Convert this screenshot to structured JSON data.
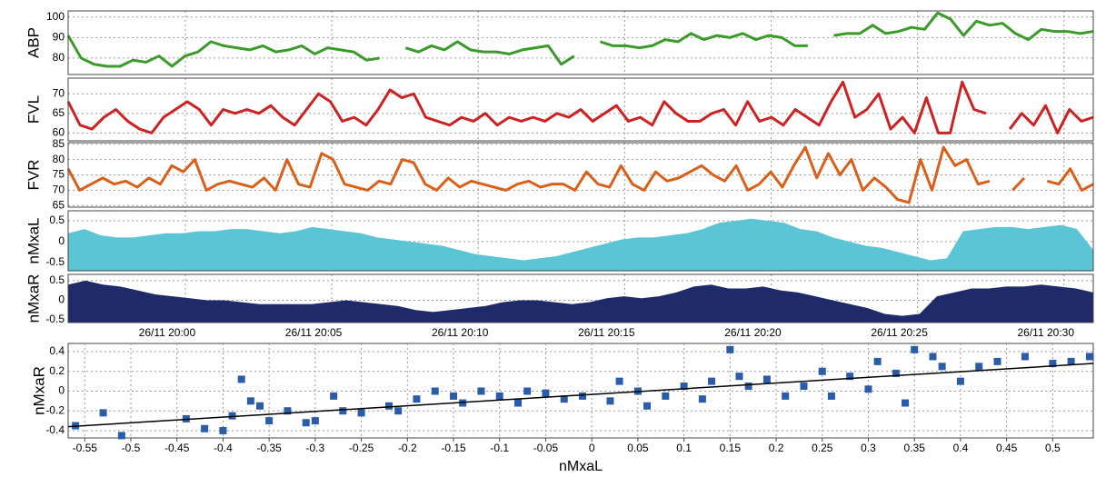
{
  "chart_data": [
    {
      "type": "line",
      "ylabel": "ABP",
      "color": "#3a9a2a",
      "ylim": [
        72,
        103
      ],
      "yticks": [
        80,
        90,
        100
      ],
      "values": [
        91,
        80,
        77,
        76,
        76,
        79,
        78,
        81,
        76,
        81,
        83,
        88,
        86,
        85,
        84,
        86,
        83,
        84,
        86,
        82,
        85,
        84,
        83,
        79,
        80,
        null,
        85,
        83,
        86,
        84,
        88,
        84,
        83,
        83,
        82,
        84,
        85,
        86,
        77,
        81,
        null,
        88,
        86,
        86,
        85,
        86,
        89,
        88,
        92,
        89,
        91,
        90,
        92,
        89,
        91,
        90,
        86,
        86,
        null,
        91,
        92,
        92,
        96,
        92,
        93,
        95,
        94,
        102,
        99,
        91,
        98,
        96,
        97,
        92,
        89,
        94,
        93,
        93,
        92,
        93
      ]
    },
    {
      "type": "line",
      "ylabel": "FVL",
      "color": "#cc2222",
      "ylim": [
        58,
        74
      ],
      "yticks": [
        60,
        65,
        70
      ],
      "values": [
        68,
        62,
        61,
        64,
        66,
        63,
        61,
        60,
        64,
        66,
        68,
        66,
        62,
        66,
        65,
        66,
        65,
        67,
        64,
        62,
        66,
        70,
        68,
        63,
        64,
        62,
        66,
        71,
        69,
        70,
        64,
        63,
        62,
        64,
        63,
        65,
        62,
        64,
        63,
        64,
        63,
        65,
        64,
        66,
        63,
        65,
        67,
        63,
        64,
        62,
        68,
        65,
        63,
        63,
        65,
        66,
        62,
        68,
        63,
        64,
        62,
        66,
        64,
        62,
        68,
        73,
        64,
        66,
        70,
        61,
        64,
        60,
        69,
        60,
        60,
        73,
        66,
        65,
        null,
        61,
        65,
        62,
        67,
        60,
        66,
        63,
        64
      ]
    },
    {
      "type": "line",
      "ylabel": "FVR",
      "color": "#d9601a",
      "ylim": [
        64.5,
        85.5
      ],
      "yticks": [
        65,
        70,
        75,
        80,
        85
      ],
      "values": [
        77,
        70,
        72,
        74,
        72,
        73,
        71,
        74,
        72,
        78,
        76,
        80,
        70,
        72,
        73,
        72,
        71,
        74,
        70,
        80,
        72,
        71,
        82,
        80,
        72,
        71,
        70,
        73,
        72,
        80,
        79,
        72,
        70,
        74,
        71,
        73,
        72,
        71,
        70,
        72,
        73,
        71,
        72,
        72,
        70,
        76,
        72,
        71,
        78,
        72,
        70,
        76,
        73,
        74,
        76,
        78,
        75,
        73,
        78,
        70,
        72,
        76,
        71,
        78,
        84,
        74,
        82,
        75,
        80,
        70,
        74,
        71,
        67,
        66,
        80,
        70,
        84,
        78,
        80,
        72,
        73,
        null,
        70,
        74,
        null,
        73,
        72,
        77,
        70,
        72
      ]
    },
    {
      "type": "area",
      "ylabel": "nMxaL",
      "color": "#5bc5d6",
      "ylim": [
        -0.7,
        0.74
      ],
      "yticks": [
        -0.5,
        0,
        0.5
      ],
      "values": [
        0.2,
        0.3,
        0.15,
        0.1,
        0.1,
        0.15,
        0.2,
        0.2,
        0.25,
        0.25,
        0.3,
        0.3,
        0.25,
        0.2,
        0.25,
        0.35,
        0.3,
        0.25,
        0.2,
        0.1,
        0.05,
        0,
        -0.05,
        -0.1,
        -0.2,
        -0.3,
        -0.35,
        -0.4,
        -0.45,
        -0.4,
        -0.35,
        -0.25,
        -0.15,
        -0.05,
        0.05,
        0.1,
        0.1,
        0.15,
        0.2,
        0.3,
        0.45,
        0.5,
        0.55,
        0.5,
        0.45,
        0.3,
        0.25,
        0.1,
        0,
        -0.1,
        -0.15,
        -0.25,
        -0.35,
        -0.45,
        -0.4,
        0.25,
        0.3,
        0.35,
        0.35,
        0.3,
        0.35,
        0.4,
        0.3,
        -0.2
      ]
    },
    {
      "type": "area",
      "ylabel": "nMxaR",
      "color": "#1f2a6b",
      "ylim": [
        -0.57,
        0.66
      ],
      "yticks": [
        -0.5,
        0,
        0.5
      ],
      "xlim": [
        "26/11 19:56",
        "26/11 20:31"
      ],
      "xticks": [
        "26/11 20:00",
        "26/11 20:05",
        "26/11 20:10",
        "26/11 20:15",
        "26/11 20:20",
        "26/11 20:25",
        "26/11 20:30"
      ],
      "values": [
        0.4,
        0.5,
        0.4,
        0.35,
        0.25,
        0.15,
        0.1,
        0.05,
        0,
        0,
        -0.05,
        -0.1,
        -0.1,
        -0.1,
        -0.1,
        -0.05,
        0,
        -0.05,
        -0.1,
        -0.15,
        -0.25,
        -0.3,
        -0.25,
        -0.2,
        -0.15,
        -0.05,
        0,
        0,
        -0.05,
        -0.1,
        -0.05,
        0.05,
        0.1,
        0.05,
        0.1,
        0.2,
        0.35,
        0.4,
        0.3,
        0.3,
        0.35,
        0.25,
        0.2,
        0.1,
        0,
        -0.1,
        -0.2,
        -0.35,
        -0.4,
        -0.35,
        0.1,
        0.2,
        0.3,
        0.3,
        0.35,
        0.35,
        0.4,
        0.35,
        0.3,
        0.2
      ]
    },
    {
      "type": "scatter",
      "ylabel": "nMxaR",
      "xlabel": "nMxaL",
      "color": "#2a5caa",
      "xlim": [
        -0.568,
        0.544
      ],
      "ylim": [
        -0.474,
        0.483
      ],
      "xticks": [
        -0.55,
        -0.5,
        -0.45,
        -0.4,
        -0.35,
        -0.3,
        -0.25,
        -0.2,
        -0.15,
        -0.1,
        -0.05,
        0,
        0.05,
        0.1,
        0.15,
        0.2,
        0.25,
        0.3,
        0.35,
        0.4,
        0.45,
        0.5
      ],
      "yticks": [
        -0.4,
        -0.2,
        0,
        0.2,
        0.4
      ],
      "x": [
        -0.56,
        -0.53,
        -0.51,
        -0.44,
        -0.42,
        -0.4,
        -0.39,
        -0.38,
        -0.37,
        -0.36,
        -0.35,
        -0.33,
        -0.31,
        -0.3,
        -0.28,
        -0.27,
        -0.25,
        -0.22,
        -0.21,
        -0.19,
        -0.17,
        -0.15,
        -0.14,
        -0.12,
        -0.1,
        -0.08,
        -0.07,
        -0.05,
        -0.03,
        -0.01,
        0.02,
        0.03,
        0.05,
        0.06,
        0.08,
        0.1,
        0.12,
        0.13,
        0.15,
        0.16,
        0.17,
        0.19,
        0.21,
        0.23,
        0.25,
        0.26,
        0.28,
        0.3,
        0.31,
        0.33,
        0.34,
        0.35,
        0.37,
        0.38,
        0.4,
        0.42,
        0.44,
        0.47,
        0.5,
        0.52,
        0.54
      ],
      "values": [
        -0.35,
        -0.22,
        -0.45,
        -0.28,
        -0.38,
        -0.4,
        -0.25,
        0.12,
        -0.1,
        -0.15,
        -0.3,
        -0.2,
        -0.32,
        -0.3,
        -0.05,
        -0.2,
        -0.22,
        -0.15,
        -0.2,
        -0.08,
        0,
        -0.05,
        -0.12,
        0,
        -0.05,
        -0.12,
        0,
        -0.02,
        -0.08,
        -0.05,
        -0.1,
        0.1,
        0,
        -0.15,
        -0.05,
        0.05,
        -0.08,
        0.1,
        0.42,
        0.15,
        0.05,
        0.12,
        -0.05,
        0.05,
        0.2,
        -0.05,
        0.15,
        0.02,
        0.3,
        0.18,
        -0.12,
        0.42,
        0.35,
        0.25,
        0.1,
        0.25,
        0.3,
        0.35,
        0.28,
        0.3,
        0.35
      ],
      "trend": {
        "color": "#000000",
        "x": [
          -0.568,
          0.544
        ],
        "values": [
          -0.36,
          0.28
        ]
      }
    }
  ]
}
